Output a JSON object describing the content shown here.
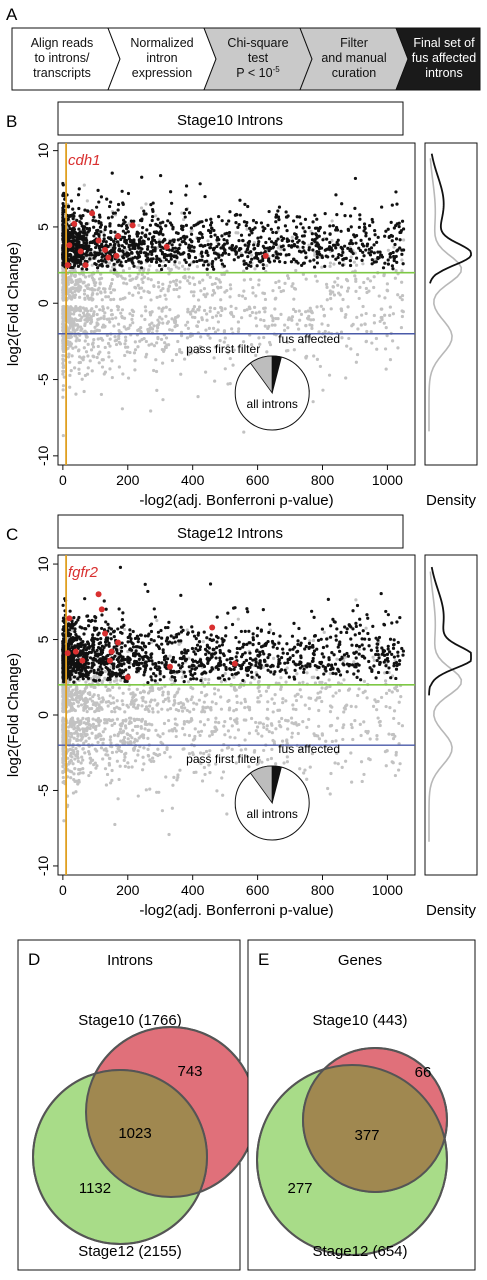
{
  "panel_labels": {
    "a": "A",
    "b": "B",
    "c": "C",
    "d": "D",
    "e": "E"
  },
  "workflow": {
    "steps": [
      {
        "lines": [
          "Align reads",
          "to introns/",
          "transcripts"
        ],
        "fill": "#ffffff",
        "text_color": "#111111"
      },
      {
        "lines": [
          "Normalized",
          "intron",
          "expression"
        ],
        "fill": "#ffffff",
        "text_color": "#111111"
      },
      {
        "lines": [
          "Chi-square",
          "test",
          "P < 10"
        ],
        "superscript": "-5",
        "fill": "#c9c9c9",
        "text_color": "#111111"
      },
      {
        "lines": [
          "Filter",
          "and manual",
          "curation"
        ],
        "fill": "#c9c9c9",
        "text_color": "#111111"
      },
      {
        "lines": [
          "Final set of",
          "fus affected",
          "introns"
        ],
        "fill": "#1a1a1a",
        "text_color": "#ffffff"
      }
    ]
  },
  "colors": {
    "black_point": "#111111",
    "grey_point": "#c2c2c2",
    "highlight": "#d93030",
    "vline": "#e0a020",
    "upper_hline": "#7ec845",
    "lower_hline": "#4a5aa8",
    "venn_red": "#e0707a",
    "venn_green": "#a8dc88",
    "venn_overlap": "#a08850"
  },
  "plot_b": {
    "title": "Stage10 Introns",
    "gene_label": "cdh1",
    "ylabel": "log2(Fold Change)",
    "xlabel": "-log2(adj. Bonferroni p-value)",
    "density_label": "Density",
    "pie_labels": {
      "first": "pass first filter",
      "fus": "fus affected",
      "all": "all introns"
    },
    "pie_fractions": {
      "first": 0.1,
      "fus": 0.04
    },
    "xticks": [
      0,
      200,
      400,
      600,
      800,
      1000
    ],
    "yticks": [
      -10,
      -5,
      0,
      5,
      10
    ],
    "xlim": [
      -15,
      1085
    ],
    "ylim": [
      -10.6,
      10.5
    ],
    "thresholds": {
      "upper": 2,
      "lower": -2,
      "x": 10
    },
    "highlighted_points": [
      [
        20,
        3.8
      ],
      [
        35,
        5.2
      ],
      [
        55,
        3.4
      ],
      [
        70,
        2.5
      ],
      [
        90,
        5.9
      ],
      [
        110,
        4.1
      ],
      [
        130,
        3.5
      ],
      [
        140,
        3.0
      ],
      [
        170,
        4.4
      ],
      [
        165,
        3.1
      ],
      [
        215,
        5.1
      ],
      [
        320,
        3.7
      ],
      [
        625,
        3.1
      ],
      [
        15,
        2.5
      ]
    ]
  },
  "plot_c": {
    "title": "Stage12 Introns",
    "gene_label": "fgfr2",
    "ylabel": "log2(Fold Change)",
    "xlabel": "-log2(adj. Bonferroni p-value)",
    "density_label": "Density",
    "pie_labels": {
      "first": "pass first filter",
      "fus": "fus affected",
      "all": "all introns"
    },
    "pie_fractions": {
      "first": 0.1,
      "fus": 0.04
    },
    "xticks": [
      0,
      200,
      400,
      600,
      800,
      1000
    ],
    "yticks": [
      -10,
      -5,
      0,
      5,
      10
    ],
    "xlim": [
      -15,
      1085
    ],
    "ylim": [
      -10.6,
      10.6
    ],
    "thresholds": {
      "upper": 2,
      "lower": -2,
      "x": 10
    },
    "highlighted_points": [
      [
        20,
        6.4
      ],
      [
        15,
        4.1
      ],
      [
        40,
        4.2
      ],
      [
        60,
        3.6
      ],
      [
        110,
        8.0
      ],
      [
        120,
        7.0
      ],
      [
        130,
        5.4
      ],
      [
        150,
        4.2
      ],
      [
        145,
        3.6
      ],
      [
        170,
        4.8
      ],
      [
        200,
        2.5
      ],
      [
        330,
        3.2
      ],
      [
        460,
        5.8
      ],
      [
        530,
        3.4
      ]
    ]
  },
  "venn_introns": {
    "title": "Introns",
    "top_label": "Stage10 (1766)",
    "bottom_label": "Stage12 (2155)",
    "only_a": "743",
    "both": "1023",
    "only_b": "1132"
  },
  "venn_genes": {
    "title": "Genes",
    "top_label": "Stage10 (443)",
    "bottom_label": "Stage12 (654)",
    "only_a": "66",
    "both": "377",
    "only_b": "277"
  }
}
